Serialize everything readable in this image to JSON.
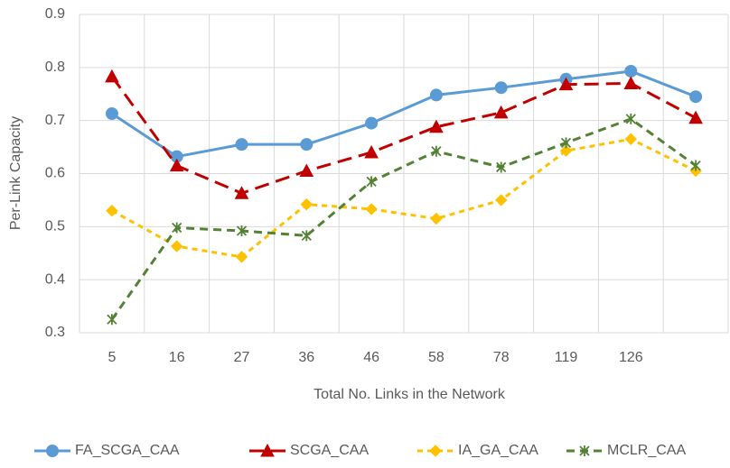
{
  "chart_data": {
    "type": "line",
    "x_label": "Total No. Links in the Network",
    "y_label": "Per-Link Capacity",
    "categories": [
      "5",
      "16",
      "27",
      "36",
      "46",
      "58",
      "78",
      "119",
      "126",
      null
    ],
    "series": [
      {
        "name": "FA_SCGA_CAA",
        "color": "#5b9bd5",
        "marker": "circle",
        "dash": "solid",
        "values": [
          0.713,
          0.632,
          0.655,
          0.655,
          0.695,
          0.748,
          0.762,
          0.778,
          0.793,
          0.745
        ]
      },
      {
        "name": "SCGA_CAA",
        "color": "#c00000",
        "marker": "triangle",
        "dash": "long",
        "values": [
          0.783,
          0.615,
          0.563,
          0.605,
          0.64,
          0.688,
          0.715,
          0.768,
          0.77,
          0.705
        ]
      },
      {
        "name": "IA_GA_CAA",
        "color": "#ffc000",
        "marker": "diamond",
        "dash": "short",
        "values": [
          0.53,
          0.463,
          0.443,
          0.542,
          0.533,
          0.515,
          0.55,
          0.643,
          0.665,
          0.605
        ]
      },
      {
        "name": "MCLR_CAA",
        "color": "#548235",
        "marker": "star",
        "dash": "medium",
        "values": [
          0.325,
          0.498,
          0.492,
          0.483,
          0.585,
          0.642,
          0.612,
          0.658,
          0.703,
          0.615
        ]
      }
    ],
    "ylim": [
      0.3,
      0.9
    ],
    "yticks": [
      0.3,
      0.4,
      0.5,
      0.6,
      0.7,
      0.8,
      0.9
    ],
    "grid": true,
    "legend": "bottom"
  }
}
